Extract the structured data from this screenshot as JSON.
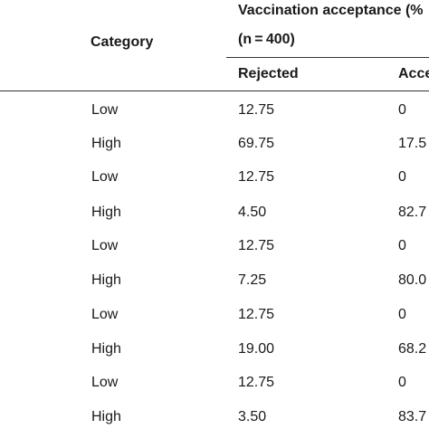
{
  "table": {
    "header": {
      "category": "Category",
      "group_title": "Vaccination acceptance (%",
      "group_sample": "(n = 400)",
      "col_rejected": "Rejected",
      "col_accepted": "Acce"
    },
    "rows": [
      {
        "category": "Low",
        "rejected": "12.75",
        "accepted": "0"
      },
      {
        "category": "High",
        "rejected": "69.75",
        "accepted": "17.5"
      },
      {
        "category": "Low",
        "rejected": "12.75",
        "accepted": "0"
      },
      {
        "category": "High",
        "rejected": "4.50",
        "accepted": "82.7"
      },
      {
        "category": "Low",
        "rejected": "12.75",
        "accepted": "0"
      },
      {
        "category": "High",
        "rejected": "7.25",
        "accepted": "80.0"
      },
      {
        "category": "Low",
        "rejected": "12.75",
        "accepted": "0"
      },
      {
        "category": "High",
        "rejected": "19.00",
        "accepted": "68.2"
      },
      {
        "category": "Low",
        "rejected": "12.75",
        "accepted": "0"
      },
      {
        "category": "High",
        "rejected": "3.50",
        "accepted": "83.7"
      }
    ]
  }
}
